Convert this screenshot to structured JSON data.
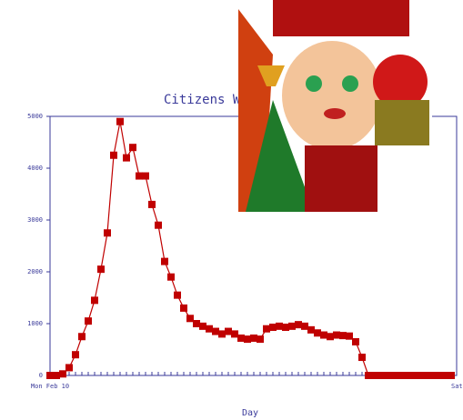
{
  "chart_data": {
    "type": "line",
    "title": "Citizens Wi",
    "x_label": "Day",
    "categories": [
      "Mon Feb 10",
      null,
      null,
      null,
      null,
      null,
      null,
      null,
      null,
      null,
      null,
      null,
      null,
      null,
      null,
      null,
      null,
      null,
      null,
      null,
      null,
      null,
      null,
      null,
      null,
      null,
      null,
      null,
      null,
      null,
      null,
      null,
      null,
      null,
      null,
      null,
      null,
      null,
      null,
      null,
      null,
      null,
      null,
      null,
      null,
      null,
      null,
      null,
      null,
      null,
      null,
      null,
      null,
      null,
      null,
      null,
      null,
      null,
      null,
      null,
      null,
      null,
      null,
      "Sat Ma"
    ],
    "series": [
      {
        "color": "#c00000",
        "values": [
          0,
          0,
          30,
          150,
          400,
          750,
          1050,
          1450,
          2050,
          2750,
          4250,
          4900,
          4200,
          4400,
          3850,
          3850,
          3300,
          2900,
          2200,
          1900,
          1550,
          1300,
          1100,
          1000,
          950,
          900,
          850,
          800,
          850,
          800,
          720,
          700,
          720,
          700,
          900,
          930,
          950,
          930,
          950,
          980,
          950,
          880,
          820,
          780,
          750,
          780,
          770,
          760,
          650,
          350,
          0,
          0,
          0,
          0,
          0,
          0,
          0,
          0,
          0,
          0,
          0,
          0,
          0,
          0
        ]
      }
    ],
    "ylim": [
      0,
      5000
    ],
    "yticks": [
      0,
      1000,
      2000,
      3000,
      4000,
      5000
    ],
    "axis_color": "#3a3a9a"
  }
}
